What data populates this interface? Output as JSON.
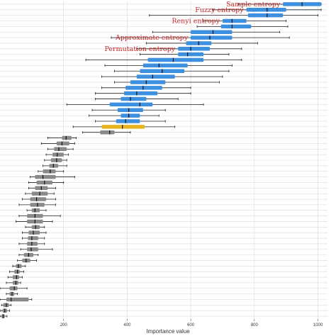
{
  "chart_data": {
    "type": "boxplot",
    "title": "",
    "xlabel": "Importance value",
    "ylabel": "",
    "xlim": [
      0,
      1030
    ],
    "xticks": [
      "200",
      "400",
      "600",
      "800",
      "1000"
    ],
    "xtick_values": [
      200,
      400,
      600,
      800,
      1000
    ],
    "grid": true,
    "orientation": "horizontal",
    "colors": {
      "highlight": "#3d8fe0",
      "target": "#e8b321",
      "other": "#8a8a8a",
      "annotation": "#c62828",
      "grid": "#d9d9d9",
      "whisker": "#222222",
      "median": "#111111"
    },
    "annotations": [
      {
        "label": "Sample entropy",
        "feature_index": 0
      },
      {
        "label": "Fuzzy entropy",
        "feature_index": 1
      },
      {
        "label": "Renyi entropy",
        "feature_index": 3
      },
      {
        "label": "Approximate entropy",
        "feature_index": 6
      },
      {
        "label": "Permutation entropy",
        "feature_index": 8
      }
    ],
    "features": [
      {
        "min": 750,
        "q1": 890,
        "median": 950,
        "q3": 1010,
        "max": 1010,
        "group": "highlight"
      },
      {
        "min": 670,
        "q1": 775,
        "median": 840,
        "q3": 900,
        "max": 1010,
        "group": "highlight"
      },
      {
        "min": 470,
        "q1": 780,
        "median": 840,
        "q3": 890,
        "max": 1000,
        "group": "highlight"
      },
      {
        "min": 640,
        "q1": 700,
        "median": 730,
        "q3": 775,
        "max": 900,
        "group": "highlight"
      },
      {
        "min": 620,
        "q1": 695,
        "median": 730,
        "q3": 790,
        "max": 905,
        "group": "highlight"
      },
      {
        "min": 480,
        "q1": 600,
        "median": 670,
        "q3": 730,
        "max": 880,
        "group": "highlight"
      },
      {
        "min": 350,
        "q1": 600,
        "median": 660,
        "q3": 730,
        "max": 910,
        "group": "highlight"
      },
      {
        "min": 460,
        "q1": 585,
        "median": 625,
        "q3": 665,
        "max": 810,
        "group": "highlight"
      },
      {
        "min": 430,
        "q1": 560,
        "median": 600,
        "q3": 660,
        "max": 760,
        "group": "highlight"
      },
      {
        "min": 440,
        "q1": 560,
        "median": 590,
        "q3": 640,
        "max": 720,
        "group": "highlight"
      },
      {
        "min": 270,
        "q1": 465,
        "median": 545,
        "q3": 640,
        "max": 760,
        "group": "highlight"
      },
      {
        "min": 330,
        "q1": 450,
        "median": 500,
        "q3": 590,
        "max": 730,
        "group": "highlight"
      },
      {
        "min": 360,
        "q1": 440,
        "median": 510,
        "q3": 580,
        "max": 720,
        "group": "highlight"
      },
      {
        "min": 320,
        "q1": 430,
        "median": 480,
        "q3": 550,
        "max": 700,
        "group": "highlight"
      },
      {
        "min": 360,
        "q1": 410,
        "median": 460,
        "q3": 520,
        "max": 690,
        "group": "highlight"
      },
      {
        "min": 320,
        "q1": 395,
        "median": 450,
        "q3": 510,
        "max": 600,
        "group": "highlight"
      },
      {
        "min": 300,
        "q1": 390,
        "median": 430,
        "q3": 495,
        "max": 600,
        "group": "highlight"
      },
      {
        "min": 300,
        "q1": 380,
        "median": 410,
        "q3": 460,
        "max": 560,
        "group": "highlight"
      },
      {
        "min": 210,
        "q1": 345,
        "median": 440,
        "q3": 480,
        "max": 640,
        "group": "highlight"
      },
      {
        "min": 290,
        "q1": 370,
        "median": 405,
        "q3": 450,
        "max": 520,
        "group": "highlight"
      },
      {
        "min": 280,
        "q1": 380,
        "median": 405,
        "q3": 440,
        "max": 500,
        "group": "highlight"
      },
      {
        "min": 300,
        "q1": 365,
        "median": 395,
        "q3": 440,
        "max": 520,
        "group": "highlight"
      },
      {
        "min": 230,
        "q1": 320,
        "median": 385,
        "q3": 455,
        "max": 550,
        "group": "target"
      },
      {
        "min": 260,
        "q1": 315,
        "median": 345,
        "q3": 360,
        "max": 410,
        "group": "other"
      },
      {
        "min": 150,
        "q1": 195,
        "median": 208,
        "q3": 225,
        "max": 240,
        "group": "other"
      },
      {
        "min": 130,
        "q1": 178,
        "median": 195,
        "q3": 218,
        "max": 235,
        "group": "other"
      },
      {
        "min": 150,
        "q1": 170,
        "median": 185,
        "q3": 210,
        "max": 230,
        "group": "other"
      },
      {
        "min": 145,
        "q1": 165,
        "median": 180,
        "q3": 200,
        "max": 215,
        "group": "other"
      },
      {
        "min": 140,
        "q1": 160,
        "median": 178,
        "q3": 195,
        "max": 210,
        "group": "other"
      },
      {
        "min": 135,
        "q1": 155,
        "median": 168,
        "q3": 183,
        "max": 210,
        "group": "other"
      },
      {
        "min": 120,
        "q1": 135,
        "median": 158,
        "q3": 175,
        "max": 200,
        "group": "other"
      },
      {
        "min": 95,
        "q1": 110,
        "median": 135,
        "q3": 175,
        "max": 235,
        "group": "other"
      },
      {
        "min": 90,
        "q1": 115,
        "median": 140,
        "q3": 165,
        "max": 200,
        "group": "other"
      },
      {
        "min": 90,
        "q1": 110,
        "median": 130,
        "q3": 150,
        "max": 175,
        "group": "other"
      },
      {
        "min": 80,
        "q1": 100,
        "median": 125,
        "q3": 150,
        "max": 170,
        "group": "other"
      },
      {
        "min": 70,
        "q1": 95,
        "median": 115,
        "q3": 145,
        "max": 175,
        "group": "other"
      },
      {
        "min": 60,
        "q1": 95,
        "median": 118,
        "q3": 140,
        "max": 175,
        "group": "other"
      },
      {
        "min": 85,
        "q1": 100,
        "median": 110,
        "q3": 125,
        "max": 145,
        "group": "other"
      },
      {
        "min": 60,
        "q1": 85,
        "median": 110,
        "q3": 135,
        "max": 190,
        "group": "other"
      },
      {
        "min": 50,
        "q1": 85,
        "median": 110,
        "q3": 135,
        "max": 165,
        "group": "other"
      },
      {
        "min": 80,
        "q1": 100,
        "median": 112,
        "q3": 125,
        "max": 140,
        "group": "other"
      },
      {
        "min": 70,
        "q1": 90,
        "median": 105,
        "q3": 125,
        "max": 145,
        "group": "other"
      },
      {
        "min": 70,
        "q1": 88,
        "median": 100,
        "q3": 120,
        "max": 140,
        "group": "other"
      },
      {
        "min": 60,
        "q1": 85,
        "median": 100,
        "q3": 118,
        "max": 140,
        "group": "other"
      },
      {
        "min": 65,
        "q1": 85,
        "median": 98,
        "q3": 120,
        "max": 165,
        "group": "other"
      },
      {
        "min": 60,
        "q1": 75,
        "median": 90,
        "q3": 105,
        "max": 120,
        "group": "other"
      },
      {
        "min": 55,
        "q1": 70,
        "median": 82,
        "q3": 95,
        "max": 115,
        "group": "other"
      },
      {
        "min": 40,
        "q1": 50,
        "median": 58,
        "q3": 68,
        "max": 80,
        "group": "other"
      },
      {
        "min": 30,
        "q1": 45,
        "median": 55,
        "q3": 62,
        "max": 75,
        "group": "other"
      },
      {
        "min": 25,
        "q1": 40,
        "median": 52,
        "q3": 60,
        "max": 70,
        "group": "other"
      },
      {
        "min": 20,
        "q1": 40,
        "median": 50,
        "q3": 58,
        "max": 65,
        "group": "other"
      },
      {
        "min": 0,
        "q1": 30,
        "median": 45,
        "q3": 55,
        "max": 85,
        "group": "other"
      },
      {
        "min": 20,
        "q1": 30,
        "median": 38,
        "q3": 45,
        "max": 55,
        "group": "other"
      },
      {
        "min": 0,
        "q1": 20,
        "median": 35,
        "q3": 90,
        "max": 100,
        "group": "other"
      },
      {
        "min": 5,
        "q1": 10,
        "median": 20,
        "q3": 28,
        "max": 35,
        "group": "other"
      },
      {
        "min": 2,
        "q1": 8,
        "median": 15,
        "q3": 22,
        "max": 30,
        "group": "other"
      },
      {
        "min": 0,
        "q1": 5,
        "median": 10,
        "q3": 15,
        "max": 22,
        "group": "other"
      }
    ]
  }
}
